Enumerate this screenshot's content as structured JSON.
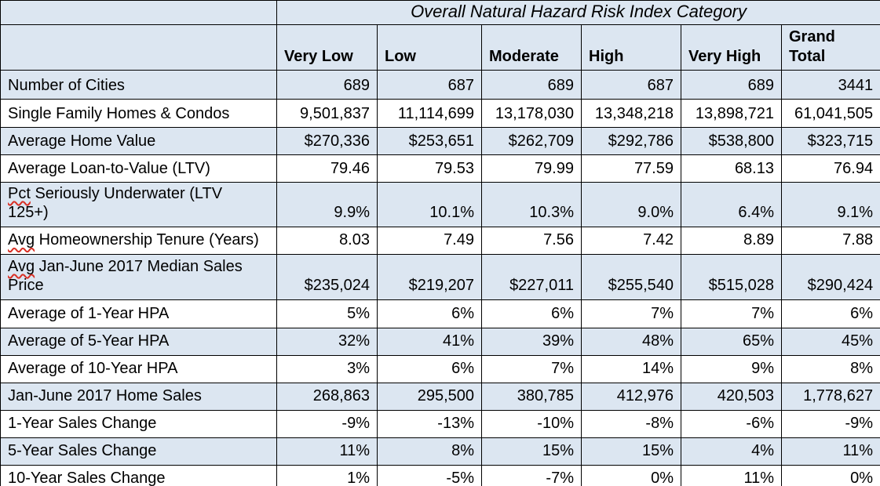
{
  "title": "Overall Natural Hazard Risk Index Category",
  "columns": [
    "Very Low",
    "Low",
    "Moderate",
    "High",
    "Very High",
    "Grand\nTotal"
  ],
  "rows": [
    {
      "mis": "",
      "label": "Number of Cities",
      "values": [
        "689",
        "687",
        "689",
        "687",
        "689",
        "3441"
      ]
    },
    {
      "mis": "",
      "label": "Single Family Homes & Condos",
      "values": [
        "9,501,837",
        "11,114,699",
        "13,178,030",
        "13,348,218",
        "13,898,721",
        "61,041,505"
      ]
    },
    {
      "mis": "",
      "label": "Average Home Value",
      "values": [
        "$270,336",
        "$253,651",
        "$262,709",
        "$292,786",
        "$538,800",
        "$323,715"
      ]
    },
    {
      "mis": "",
      "label": "Average Loan-to-Value (LTV)",
      "values": [
        "79.46",
        "79.53",
        "79.99",
        "77.59",
        "68.13",
        "76.94"
      ]
    },
    {
      "mis": "Pct",
      "label": " Seriously Underwater (LTV\n125+)",
      "values": [
        "9.9%",
        "10.1%",
        "10.3%",
        "9.0%",
        "6.4%",
        "9.1%"
      ]
    },
    {
      "mis": "Avg",
      "label": " Homeownership Tenure (Years)",
      "values": [
        "8.03",
        "7.49",
        "7.56",
        "7.42",
        "8.89",
        "7.88"
      ]
    },
    {
      "mis": "Avg",
      "label": " Jan-June 2017 Median Sales\nPrice",
      "values": [
        "$235,024",
        "$219,207",
        "$227,011",
        "$255,540",
        "$515,028",
        "$290,424"
      ]
    },
    {
      "mis": "",
      "label": "Average of 1-Year HPA",
      "values": [
        "5%",
        "6%",
        "6%",
        "7%",
        "7%",
        "6%"
      ]
    },
    {
      "mis": "",
      "label": "Average of 5-Year HPA",
      "values": [
        "32%",
        "41%",
        "39%",
        "48%",
        "65%",
        "45%"
      ]
    },
    {
      "mis": "",
      "label": "Average of 10-Year HPA",
      "values": [
        "3%",
        "6%",
        "7%",
        "14%",
        "9%",
        "8%"
      ]
    },
    {
      "mis": "",
      "label": "Jan-June 2017 Home Sales",
      "values": [
        "268,863",
        "295,500",
        "380,785",
        "412,976",
        "420,503",
        "1,778,627"
      ]
    },
    {
      "mis": "",
      "label": "1-Year Sales Change",
      "values": [
        "-9%",
        "-13%",
        "-10%",
        "-8%",
        "-6%",
        "-9%"
      ]
    },
    {
      "mis": "",
      "label": "5-Year Sales Change",
      "values": [
        "11%",
        "8%",
        "15%",
        "15%",
        "4%",
        "11%"
      ]
    },
    {
      "mis": "",
      "label": "10-Year Sales Change",
      "values": [
        "1%",
        "-5%",
        "-7%",
        "0%",
        "11%",
        "0%"
      ]
    }
  ],
  "colors": {
    "band_blue": "#dce6f1",
    "band_white": "#ffffff",
    "border_black": "#000000",
    "spellcheck_red": "#d93025"
  },
  "chart_data": {
    "type": "table",
    "title": "Overall Natural Hazard Risk Index Category",
    "columns": [
      "Very Low",
      "Low",
      "Moderate",
      "High",
      "Very High",
      "Grand Total"
    ],
    "rows": [
      {
        "label": "Number of Cities",
        "values": [
          "689",
          "687",
          "689",
          "687",
          "689",
          "3441"
        ]
      },
      {
        "label": "Single Family Homes & Condos",
        "values": [
          "9,501,837",
          "11,114,699",
          "13,178,030",
          "13,348,218",
          "13,898,721",
          "61,041,505"
        ]
      },
      {
        "label": "Average Home Value",
        "values": [
          "$270,336",
          "$253,651",
          "$262,709",
          "$292,786",
          "$538,800",
          "$323,715"
        ]
      },
      {
        "label": "Average Loan-to-Value (LTV)",
        "values": [
          "79.46",
          "79.53",
          "79.99",
          "77.59",
          "68.13",
          "76.94"
        ]
      },
      {
        "label": "Pct Seriously Underwater (LTV 125+)",
        "values": [
          "9.9%",
          "10.1%",
          "10.3%",
          "9.0%",
          "6.4%",
          "9.1%"
        ]
      },
      {
        "label": "Avg Homeownership Tenure (Years)",
        "values": [
          "8.03",
          "7.49",
          "7.56",
          "7.42",
          "8.89",
          "7.88"
        ]
      },
      {
        "label": "Avg Jan-June 2017 Median Sales Price",
        "values": [
          "$235,024",
          "$219,207",
          "$227,011",
          "$255,540",
          "$515,028",
          "$290,424"
        ]
      },
      {
        "label": "Average of 1-Year HPA",
        "values": [
          "5%",
          "6%",
          "6%",
          "7%",
          "7%",
          "6%"
        ]
      },
      {
        "label": "Average of 5-Year HPA",
        "values": [
          "32%",
          "41%",
          "39%",
          "48%",
          "65%",
          "45%"
        ]
      },
      {
        "label": "Average of 10-Year HPA",
        "values": [
          "3%",
          "6%",
          "7%",
          "14%",
          "9%",
          "8%"
        ]
      },
      {
        "label": "Jan-June 2017 Home Sales",
        "values": [
          "268,863",
          "295,500",
          "380,785",
          "412,976",
          "420,503",
          "1,778,627"
        ]
      },
      {
        "label": "1-Year Sales Change",
        "values": [
          "-9%",
          "-13%",
          "-10%",
          "-8%",
          "-6%",
          "-9%"
        ]
      },
      {
        "label": "5-Year Sales Change",
        "values": [
          "11%",
          "8%",
          "15%",
          "15%",
          "4%",
          "11%"
        ]
      },
      {
        "label": "10-Year Sales Change",
        "values": [
          "1%",
          "-5%",
          "-7%",
          "0%",
          "11%",
          "0%"
        ]
      }
    ]
  }
}
